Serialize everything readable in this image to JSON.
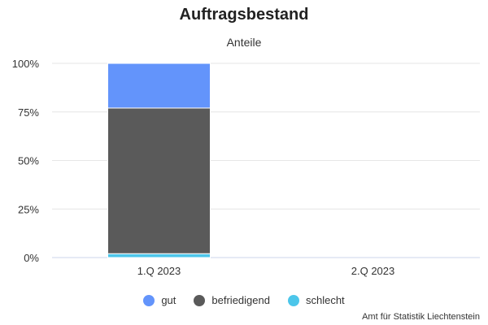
{
  "chart_data": {
    "type": "bar",
    "stacked": true,
    "title": "Auftragsbestand",
    "subtitle": "Anteile",
    "xlabel": "",
    "ylabel": "",
    "categories": [
      "1.Q 2023",
      "2.Q 2023"
    ],
    "y_ticks": [
      "0%",
      "25%",
      "50%",
      "75%",
      "100%"
    ],
    "ylim": [
      0,
      100
    ],
    "grid": true,
    "legend_position": "bottom",
    "series": [
      {
        "name": "schlecht",
        "color": "#4cc6ea",
        "values": [
          2,
          null
        ]
      },
      {
        "name": "befriedigend",
        "color": "#5a5a5a",
        "values": [
          75,
          null
        ]
      },
      {
        "name": "gut",
        "color": "#6394fb",
        "values": [
          23,
          null
        ]
      }
    ],
    "legend_order": [
      "gut",
      "befriedigend",
      "schlecht"
    ]
  },
  "source": "Amt für Statistik Liechtenstein"
}
